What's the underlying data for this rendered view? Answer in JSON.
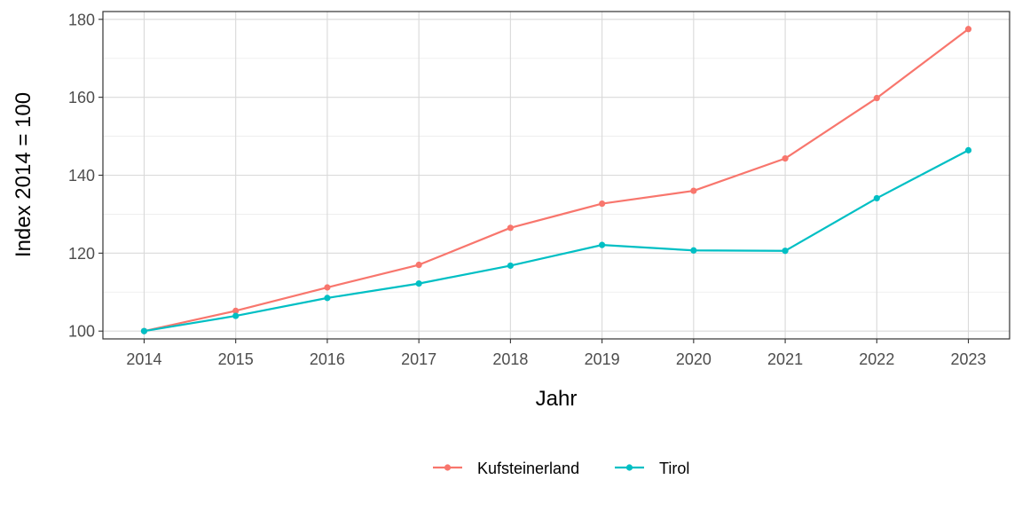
{
  "chart_data": {
    "type": "line",
    "x": [
      2014,
      2015,
      2016,
      2017,
      2018,
      2019,
      2020,
      2021,
      2022,
      2023
    ],
    "series": [
      {
        "name": "Kufsteinerland",
        "color": "#f8766d",
        "values": [
          100,
          105.2,
          111.2,
          117.0,
          126.5,
          132.7,
          136.0,
          144.3,
          159.8,
          177.5
        ]
      },
      {
        "name": "Tirol",
        "color": "#00bfc4",
        "values": [
          100,
          103.9,
          108.5,
          112.2,
          116.8,
          122.1,
          120.7,
          120.6,
          134.1,
          146.4
        ]
      }
    ],
    "xlabel": "Jahr",
    "ylabel": "Index  2014  = 100",
    "xticks": [
      "2014",
      "2015",
      "2016",
      "2017",
      "2018",
      "2019",
      "2020",
      "2021",
      "2022",
      "2023"
    ],
    "yticks": [
      "100",
      "120",
      "140",
      "160",
      "180"
    ],
    "ylim": [
      98,
      182
    ],
    "xlim": [
      2013.55,
      2023.45
    ],
    "grid": true,
    "legend_position": "bottom"
  }
}
